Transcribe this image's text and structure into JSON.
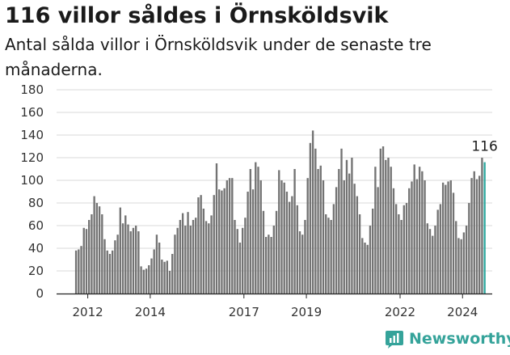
{
  "header": {
    "title": "116 villor såldes i Örnsköldsvik",
    "subtitle": "Antal sålda villor i Örnsköldsvik under de senaste tre månaderna."
  },
  "brand": {
    "name": "Newsworthy"
  },
  "colors": {
    "bar": "#737373",
    "highlight": "#2fa89f",
    "grid": "#d8d8d8",
    "brand": "#35a39a"
  },
  "chart_data": {
    "type": "bar",
    "title": "116 villor såldes i Örnsköldsvik",
    "xlabel": "",
    "ylabel": "",
    "ylim": [
      0,
      180
    ],
    "yticks": [
      0,
      20,
      40,
      60,
      80,
      100,
      120,
      140,
      160,
      180
    ],
    "xtick_labels": [
      "2012",
      "2014",
      "2017",
      "2019",
      "2022",
      "2024"
    ],
    "grid": true,
    "start": "2011-08",
    "interval": "month",
    "highlight_label": "116",
    "values": [
      38,
      39,
      42,
      58,
      57,
      65,
      70,
      86,
      80,
      77,
      70,
      48,
      38,
      35,
      38,
      47,
      52,
      76,
      62,
      69,
      61,
      55,
      58,
      60,
      55,
      24,
      21,
      22,
      25,
      31,
      39,
      52,
      45,
      30,
      28,
      29,
      20,
      35,
      52,
      58,
      65,
      71,
      60,
      72,
      60,
      65,
      67,
      85,
      87,
      75,
      64,
      62,
      69,
      87,
      115,
      92,
      91,
      93,
      100,
      102,
      102,
      65,
      57,
      45,
      58,
      67,
      90,
      110,
      92,
      116,
      112,
      100,
      73,
      50,
      52,
      50,
      60,
      73,
      109,
      100,
      98,
      90,
      81,
      86,
      110,
      78,
      55,
      52,
      65,
      102,
      133,
      144,
      128,
      110,
      113,
      100,
      70,
      67,
      65,
      79,
      94,
      110,
      128,
      100,
      118,
      106,
      120,
      97,
      86,
      70,
      49,
      45,
      43,
      60,
      75,
      112,
      94,
      128,
      130,
      118,
      120,
      112,
      93,
      79,
      70,
      65,
      78,
      80,
      93,
      99,
      114,
      101,
      112,
      108,
      100,
      62,
      57,
      51,
      60,
      74,
      79,
      98,
      96,
      99,
      100,
      89,
      64,
      49,
      48,
      54,
      60,
      80,
      102,
      108,
      101,
      104,
      120,
      116
    ]
  }
}
